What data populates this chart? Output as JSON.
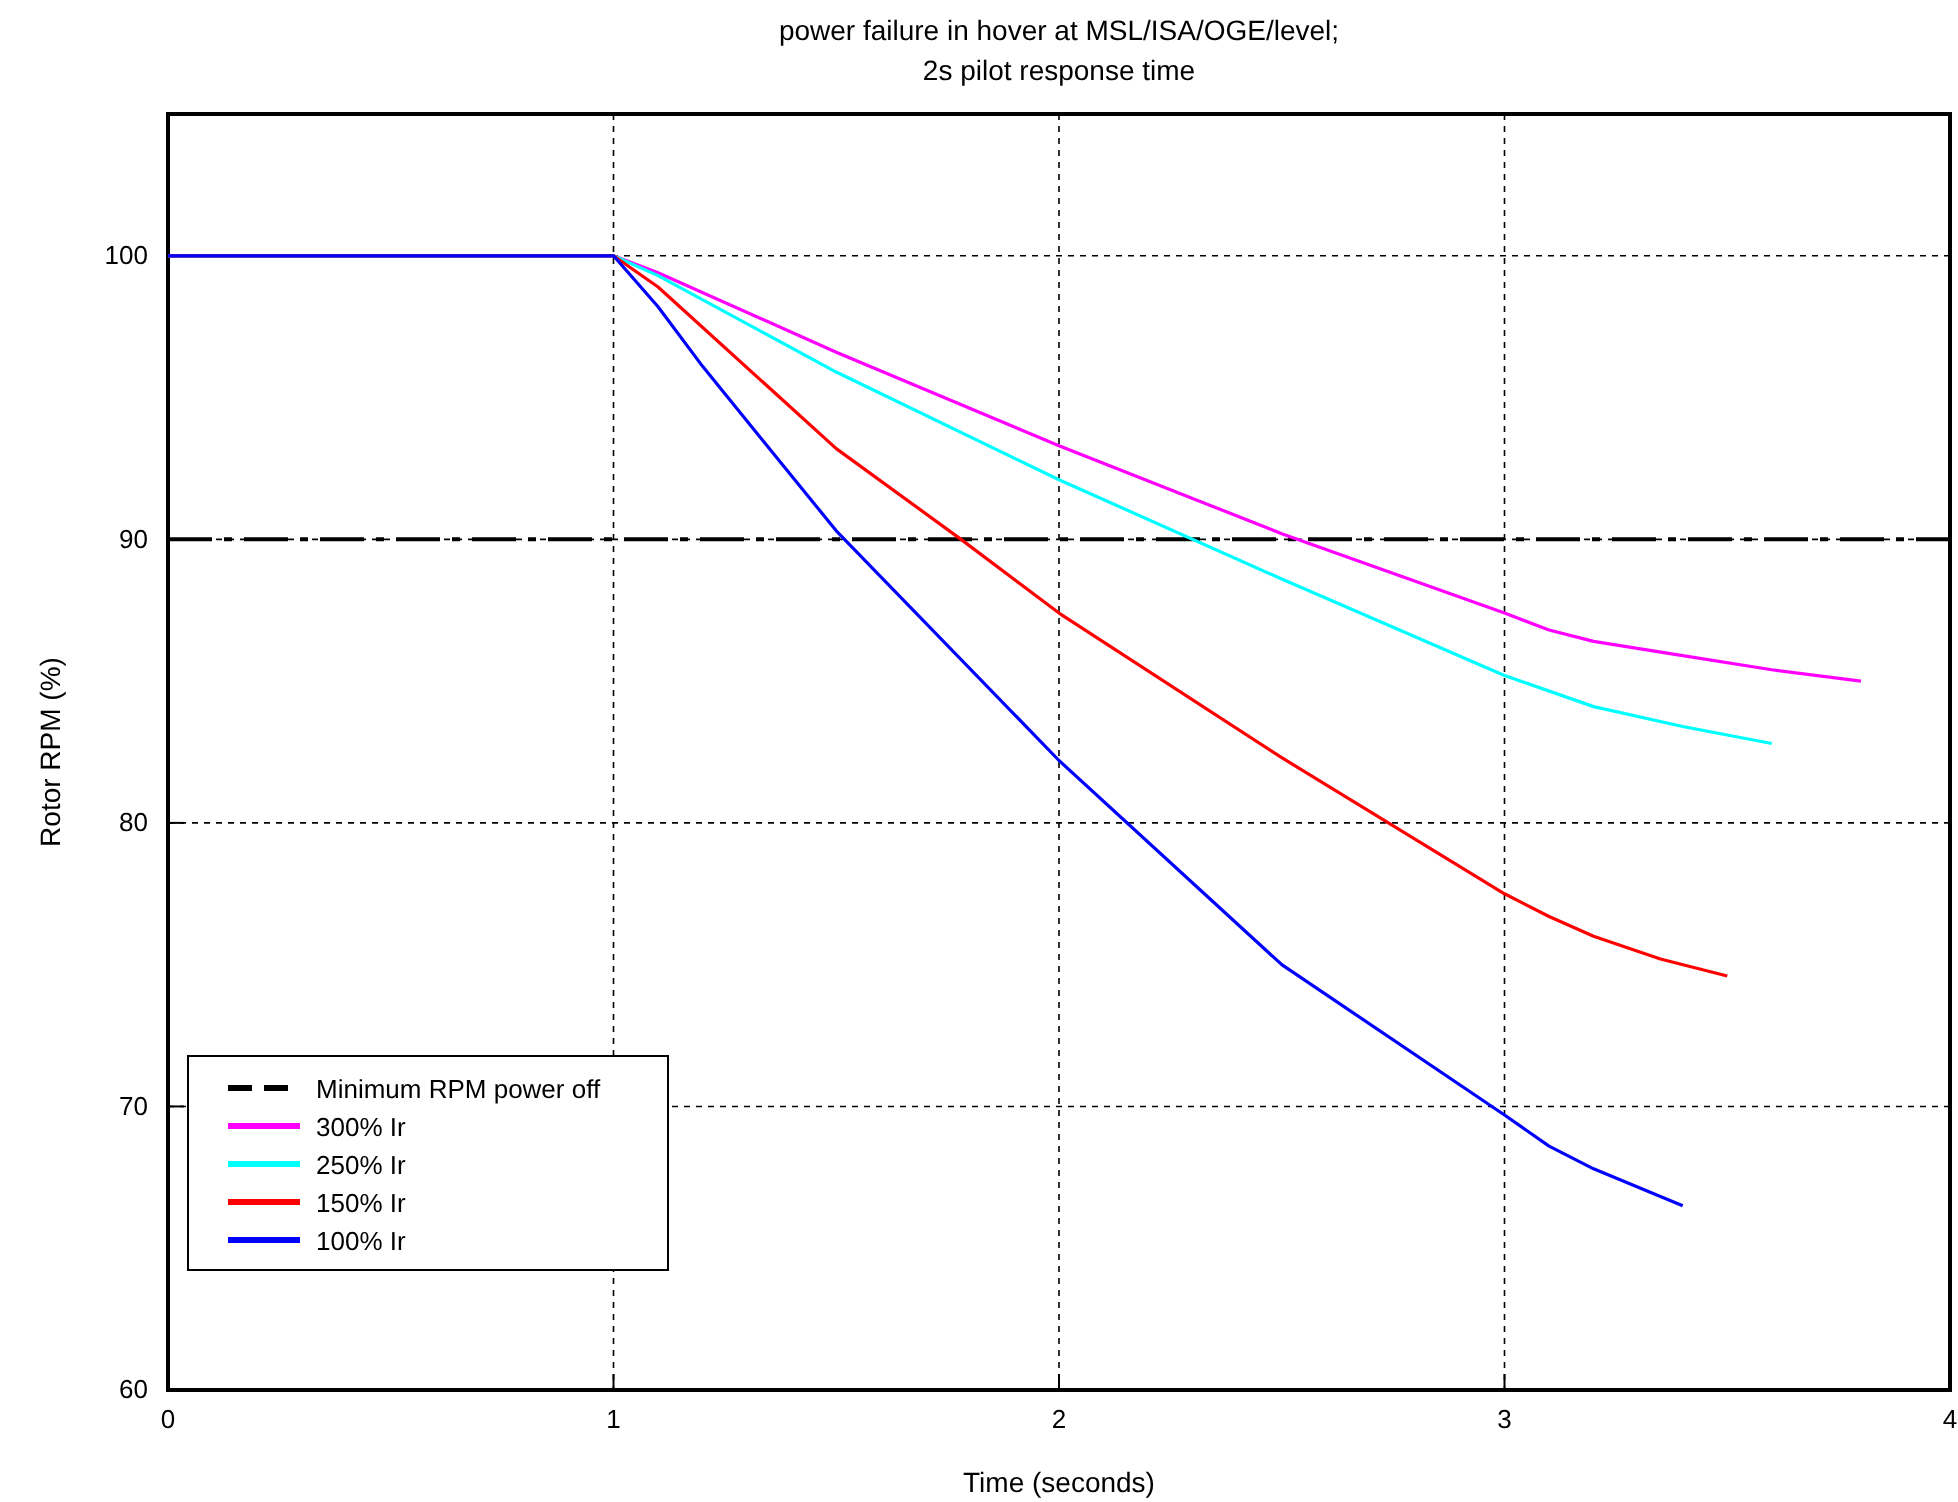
{
  "chart_data": {
    "type": "line",
    "title": "power failure in hover at MSL/ISA/OGE/level;",
    "subtitle": "2s pilot response time",
    "xlabel": "Time (seconds)",
    "ylabel": "Rotor RPM (%)",
    "xlim": [
      0,
      4
    ],
    "xticks": [
      0,
      1,
      2,
      3,
      4
    ],
    "ylim": [
      60,
      105
    ],
    "yticks": [
      60,
      70,
      80,
      90,
      100
    ],
    "grid": true,
    "legend": "bottom left",
    "line_style": "solid",
    "marker": "none",
    "ref_lines": [
      {
        "axis": "y",
        "value": 90,
        "label": "Minimum RPM power off",
        "color": "#000000",
        "line_style": "dashdot"
      }
    ],
    "series": [
      {
        "name": "300% Ir",
        "color": "#ff00ff",
        "x": [
          0,
          1,
          1.1,
          1.5,
          2,
          2.5,
          3,
          3.1,
          3.2,
          3.4,
          3.6,
          3.8
        ],
        "values": [
          100,
          100,
          99.4,
          96.6,
          93.3,
          90.2,
          87.4,
          86.8,
          86.4,
          85.9,
          85.4,
          85.0
        ]
      },
      {
        "name": "250% Ir",
        "color": "#00ffff",
        "x": [
          0,
          1,
          1.1,
          1.5,
          2,
          2.5,
          3,
          3.2,
          3.4,
          3.6
        ],
        "values": [
          100,
          100,
          99.3,
          95.9,
          92.1,
          88.6,
          85.2,
          84.1,
          83.4,
          82.8
        ]
      },
      {
        "name": "150% Ir",
        "color": "#ff0000",
        "x": [
          0,
          1,
          1.1,
          1.5,
          1.78,
          2,
          2.5,
          3,
          3.1,
          3.2,
          3.35,
          3.5
        ],
        "values": [
          100,
          100,
          98.9,
          93.2,
          90,
          87.4,
          82.3,
          77.5,
          76.7,
          76.0,
          75.2,
          74.6
        ]
      },
      {
        "name": "100% Ir",
        "color": "#0000ff",
        "x": [
          0,
          1,
          1.1,
          1.2,
          1.5,
          2,
          2.5,
          3,
          3.1,
          3.2,
          3.4
        ],
        "values": [
          100,
          100,
          98.2,
          96.1,
          90.3,
          82.2,
          75.0,
          69.7,
          68.6,
          67.8,
          66.5
        ]
      }
    ]
  }
}
